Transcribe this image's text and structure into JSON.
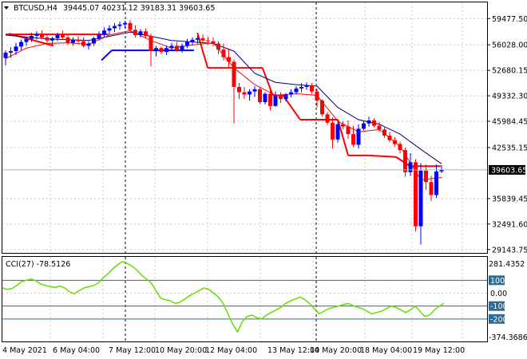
{
  "header": {
    "symbol": "BTCUSD,H4",
    "ohlc": "39445.07 40231.12 39183.31 39603.65"
  },
  "current_price_label": "39603.65",
  "cci_panel": {
    "label": "CCI(27) -78.5126",
    "top_scale": "281.4352",
    "bottom_scale": "-374.3686",
    "levels": [
      "100",
      "0.00",
      "-100",
      "-200"
    ]
  },
  "colors": {
    "bull": "#0000ff",
    "bear": "#ff0000",
    "ma_fast": "#ff0000",
    "ma_slow": "#000080",
    "cci": "#66dd00",
    "grid": "#c8c8c8",
    "price_tag": "#000000",
    "level_tag": "#2d6a96"
  },
  "chart_data": [
    {
      "type": "candlestick",
      "title": "BTCUSD,H4",
      "y_ticks": [
        "59477.50",
        "56028.00",
        "52680.15",
        "49332.30",
        "45984.45",
        "42535.15",
        "39603.65",
        "35839.45",
        "32491.60",
        "29143.75"
      ],
      "y_tick_values": [
        59477.5,
        56028.0,
        52680.15,
        49332.3,
        45984.45,
        42535.15,
        39603.65,
        35839.45,
        32491.6,
        29143.75
      ],
      "x_ticks": [
        "4 May 2021",
        "6 May 04:00",
        "7 May 12:00",
        "10 May 20:00",
        "12 May 04:00",
        "13 May 12:00",
        "14 May 20:00",
        "18 May 04:00",
        "19 May 12:00"
      ],
      "ylim": [
        28700,
        61600
      ],
      "grid": true,
      "candles": [
        {
          "o": 54300,
          "h": 55300,
          "l": 53300,
          "c": 55000
        },
        {
          "o": 55000,
          "h": 55700,
          "l": 54300,
          "c": 55200
        },
        {
          "o": 55200,
          "h": 56300,
          "l": 54700,
          "c": 55800
        },
        {
          "o": 55800,
          "h": 56700,
          "l": 55300,
          "c": 56400
        },
        {
          "o": 56400,
          "h": 57100,
          "l": 55900,
          "c": 56800
        },
        {
          "o": 56800,
          "h": 57600,
          "l": 56400,
          "c": 57200
        },
        {
          "o": 57200,
          "h": 57800,
          "l": 56700,
          "c": 57500
        },
        {
          "o": 57500,
          "h": 57900,
          "l": 56800,
          "c": 57000
        },
        {
          "o": 57000,
          "h": 57400,
          "l": 56200,
          "c": 56600
        },
        {
          "o": 56600,
          "h": 57100,
          "l": 56000,
          "c": 56900
        },
        {
          "o": 56900,
          "h": 57600,
          "l": 56500,
          "c": 57300
        },
        {
          "o": 57300,
          "h": 57900,
          "l": 56700,
          "c": 57000
        },
        {
          "o": 57000,
          "h": 57300,
          "l": 56000,
          "c": 56300
        },
        {
          "o": 56300,
          "h": 57000,
          "l": 55900,
          "c": 56700
        },
        {
          "o": 56700,
          "h": 57200,
          "l": 56300,
          "c": 56500
        },
        {
          "o": 56500,
          "h": 57000,
          "l": 55700,
          "c": 55900
        },
        {
          "o": 55900,
          "h": 56500,
          "l": 55400,
          "c": 56200
        },
        {
          "o": 56200,
          "h": 57100,
          "l": 55900,
          "c": 56900
        },
        {
          "o": 56900,
          "h": 57800,
          "l": 56600,
          "c": 57400
        },
        {
          "o": 57400,
          "h": 58300,
          "l": 57000,
          "c": 57900
        },
        {
          "o": 57900,
          "h": 58600,
          "l": 57400,
          "c": 58200
        },
        {
          "o": 58200,
          "h": 58900,
          "l": 57700,
          "c": 58500
        },
        {
          "o": 58500,
          "h": 59100,
          "l": 58000,
          "c": 58700
        },
        {
          "o": 58700,
          "h": 59200,
          "l": 58200,
          "c": 58900
        },
        {
          "o": 58900,
          "h": 59300,
          "l": 57600,
          "c": 58000
        },
        {
          "o": 58000,
          "h": 58600,
          "l": 57000,
          "c": 57300
        },
        {
          "o": 57300,
          "h": 58100,
          "l": 57000,
          "c": 57800
        },
        {
          "o": 57800,
          "h": 58200,
          "l": 56900,
          "c": 57200
        },
        {
          "o": 57200,
          "h": 57500,
          "l": 53200,
          "c": 55200
        },
        {
          "o": 55200,
          "h": 55900,
          "l": 54500,
          "c": 55600
        },
        {
          "o": 55600,
          "h": 55800,
          "l": 54800,
          "c": 55100
        },
        {
          "o": 55100,
          "h": 55900,
          "l": 54700,
          "c": 55600
        },
        {
          "o": 55600,
          "h": 56300,
          "l": 55200,
          "c": 55900
        },
        {
          "o": 55900,
          "h": 56400,
          "l": 55100,
          "c": 55300
        },
        {
          "o": 55300,
          "h": 56200,
          "l": 55000,
          "c": 55900
        },
        {
          "o": 55900,
          "h": 56800,
          "l": 55600,
          "c": 56400
        },
        {
          "o": 56400,
          "h": 57000,
          "l": 56000,
          "c": 56700
        },
        {
          "o": 56700,
          "h": 57200,
          "l": 56200,
          "c": 56900
        },
        {
          "o": 56900,
          "h": 57400,
          "l": 56400,
          "c": 56600
        },
        {
          "o": 56600,
          "h": 57100,
          "l": 56000,
          "c": 56500
        },
        {
          "o": 56500,
          "h": 57000,
          "l": 55800,
          "c": 56200
        },
        {
          "o": 56200,
          "h": 56500,
          "l": 54800,
          "c": 55400
        },
        {
          "o": 55400,
          "h": 56200,
          "l": 54000,
          "c": 54400
        },
        {
          "o": 54400,
          "h": 55400,
          "l": 53000,
          "c": 53800
        },
        {
          "o": 53800,
          "h": 54100,
          "l": 45700,
          "c": 50500
        },
        {
          "o": 50500,
          "h": 51000,
          "l": 48900,
          "c": 49800
        },
        {
          "o": 49800,
          "h": 50500,
          "l": 48900,
          "c": 49500
        },
        {
          "o": 49500,
          "h": 50200,
          "l": 48700,
          "c": 49900
        },
        {
          "o": 49900,
          "h": 50600,
          "l": 49200,
          "c": 50200
        },
        {
          "o": 50200,
          "h": 50400,
          "l": 48200,
          "c": 48500
        },
        {
          "o": 48500,
          "h": 49800,
          "l": 48200,
          "c": 49600
        },
        {
          "o": 49600,
          "h": 50100,
          "l": 47400,
          "c": 48000
        },
        {
          "o": 48000,
          "h": 49900,
          "l": 47900,
          "c": 49300
        },
        {
          "o": 49300,
          "h": 49800,
          "l": 48400,
          "c": 48900
        },
        {
          "o": 48900,
          "h": 49700,
          "l": 48600,
          "c": 49500
        },
        {
          "o": 49500,
          "h": 50200,
          "l": 49100,
          "c": 49800
        },
        {
          "o": 49800,
          "h": 50600,
          "l": 49500,
          "c": 50300
        },
        {
          "o": 50300,
          "h": 51000,
          "l": 49800,
          "c": 50500
        },
        {
          "o": 50500,
          "h": 51100,
          "l": 50100,
          "c": 50700
        },
        {
          "o": 50700,
          "h": 51000,
          "l": 49600,
          "c": 49900
        },
        {
          "o": 49900,
          "h": 50200,
          "l": 47800,
          "c": 48700
        },
        {
          "o": 48700,
          "h": 48900,
          "l": 46600,
          "c": 46900
        },
        {
          "o": 46900,
          "h": 47200,
          "l": 45500,
          "c": 45800
        },
        {
          "o": 45800,
          "h": 46500,
          "l": 42400,
          "c": 43600
        },
        {
          "o": 43600,
          "h": 45900,
          "l": 43200,
          "c": 45600
        },
        {
          "o": 45600,
          "h": 46000,
          "l": 44900,
          "c": 45300
        },
        {
          "o": 45300,
          "h": 46100,
          "l": 43700,
          "c": 44300
        },
        {
          "o": 44300,
          "h": 45400,
          "l": 42600,
          "c": 42900
        },
        {
          "o": 42900,
          "h": 45600,
          "l": 42400,
          "c": 45000
        },
        {
          "o": 45000,
          "h": 46000,
          "l": 44800,
          "c": 45700
        },
        {
          "o": 45700,
          "h": 46600,
          "l": 45300,
          "c": 46100
        },
        {
          "o": 46100,
          "h": 46400,
          "l": 45200,
          "c": 45400
        },
        {
          "o": 45400,
          "h": 45900,
          "l": 44600,
          "c": 44900
        },
        {
          "o": 44900,
          "h": 45300,
          "l": 43800,
          "c": 44100
        },
        {
          "o": 44100,
          "h": 44600,
          "l": 43200,
          "c": 43500
        },
        {
          "o": 43500,
          "h": 43900,
          "l": 42700,
          "c": 43000
        },
        {
          "o": 43000,
          "h": 43300,
          "l": 41800,
          "c": 42200
        },
        {
          "o": 42200,
          "h": 42500,
          "l": 38700,
          "c": 39300
        },
        {
          "o": 39300,
          "h": 41800,
          "l": 38800,
          "c": 40600
        },
        {
          "o": 40600,
          "h": 41000,
          "l": 31500,
          "c": 32200
        },
        {
          "o": 32200,
          "h": 40500,
          "l": 29800,
          "c": 39500
        },
        {
          "o": 39500,
          "h": 40300,
          "l": 37000,
          "c": 38000
        },
        {
          "o": 38000,
          "h": 38800,
          "l": 35500,
          "c": 36300
        },
        {
          "o": 36300,
          "h": 40300,
          "l": 35900,
          "c": 39400
        },
        {
          "o": 39400,
          "h": 40230,
          "l": 39180,
          "c": 39604
        }
      ],
      "ma_fast": [
        {
          "i": 0,
          "v": 54200
        },
        {
          "i": 4,
          "v": 55600
        },
        {
          "i": 8,
          "v": 56200
        },
        {
          "i": 12,
          "v": 56300
        },
        {
          "i": 16,
          "v": 56100
        },
        {
          "i": 20,
          "v": 57300
        },
        {
          "i": 24,
          "v": 57900
        },
        {
          "i": 28,
          "v": 56600
        },
        {
          "i": 32,
          "v": 55600
        },
        {
          "i": 36,
          "v": 56000
        },
        {
          "i": 40,
          "v": 56300
        },
        {
          "i": 44,
          "v": 53000
        },
        {
          "i": 48,
          "v": 50800
        },
        {
          "i": 52,
          "v": 49400
        },
        {
          "i": 56,
          "v": 49600
        },
        {
          "i": 60,
          "v": 49400
        },
        {
          "i": 64,
          "v": 46000
        },
        {
          "i": 68,
          "v": 44600
        },
        {
          "i": 72,
          "v": 44900
        },
        {
          "i": 76,
          "v": 42700
        },
        {
          "i": 80,
          "v": 38300
        },
        {
          "i": 84,
          "v": 38600
        }
      ],
      "ma_slow": [
        {
          "i": 0,
          "v": 57300
        },
        {
          "i": 8,
          "v": 56800
        },
        {
          "i": 16,
          "v": 56600
        },
        {
          "i": 24,
          "v": 57700
        },
        {
          "i": 32,
          "v": 56600
        },
        {
          "i": 40,
          "v": 56200
        },
        {
          "i": 44,
          "v": 55200
        },
        {
          "i": 48,
          "v": 52300
        },
        {
          "i": 52,
          "v": 51100
        },
        {
          "i": 56,
          "v": 50800
        },
        {
          "i": 60,
          "v": 50600
        },
        {
          "i": 64,
          "v": 47800
        },
        {
          "i": 68,
          "v": 46200
        },
        {
          "i": 72,
          "v": 45600
        },
        {
          "i": 76,
          "v": 44300
        },
        {
          "i": 80,
          "v": 42300
        },
        {
          "i": 84,
          "v": 40400
        }
      ],
      "stops_red": [
        [
          {
            "i": 0,
            "v": 57400
          },
          {
            "i": 30,
            "v": 57400
          }
        ],
        [
          {
            "i": 1,
            "v": 57500
          },
          {
            "i": 14,
            "v": 55900
          }
        ],
        [
          {
            "i": 56,
            "v": 57600
          },
          {
            "i": 59,
            "v": 53000
          }
        ],
        [
          {
            "i": 59,
            "v": 53000
          },
          {
            "i": 75,
            "v": 53000
          }
        ],
        [
          {
            "i": 75,
            "v": 53000
          },
          {
            "i": 78,
            "v": 49400
          }
        ],
        [
          {
            "i": 78,
            "v": 49400
          },
          {
            "i": 81,
            "v": 49400
          }
        ],
        [
          {
            "i": 81,
            "v": 49400
          },
          {
            "i": 86,
            "v": 46200
          }
        ],
        [
          {
            "i": 86,
            "v": 46200
          },
          {
            "i": 97,
            "v": 46200
          }
        ],
        [
          {
            "i": 97,
            "v": 46200
          },
          {
            "i": 100,
            "v": 41500
          }
        ],
        [
          {
            "i": 100,
            "v": 41500
          },
          {
            "i": 106,
            "v": 41500
          }
        ],
        [
          {
            "i": 106,
            "v": 41500
          },
          {
            "i": 114,
            "v": 41300
          }
        ],
        [
          {
            "i": 114,
            "v": 41300
          },
          {
            "i": 118,
            "v": 40100
          }
        ],
        [
          {
            "i": 118,
            "v": 40100
          },
          {
            "i": 127,
            "v": 40100
          }
        ]
      ],
      "stops_blue": [
        [
          {
            "i": 28,
            "v": 54000
          },
          {
            "i": 31,
            "v": 55300
          }
        ],
        [
          {
            "i": 31,
            "v": 55300
          },
          {
            "i": 55,
            "v": 55300
          }
        ]
      ]
    },
    {
      "type": "line",
      "title": "CCI(27) -78.5126",
      "y_ticks": [
        "281.4352",
        "100",
        "0.00",
        "-100",
        "-200",
        "-374.3686"
      ],
      "ylim": [
        -374.3686,
        281.4352
      ],
      "levels": [
        100,
        0,
        -100,
        -200
      ],
      "series": [
        {
          "values": [
            40,
            30,
            35,
            60,
            90,
            100,
            110,
            95,
            70,
            60,
            50,
            45,
            55,
            40,
            10,
            -5,
            20,
            40,
            50,
            60,
            80,
            120,
            150,
            190,
            220,
            245,
            230,
            210,
            180,
            140,
            110,
            80,
            20,
            -40,
            -50,
            -60,
            -80,
            -70,
            -45,
            -20,
            0,
            20,
            40,
            30,
            0,
            -30,
            -80,
            -160,
            -240,
            -300,
            -220,
            -180,
            -170,
            -190,
            -200,
            -170,
            -150,
            -130,
            -110,
            -80,
            -60,
            -45,
            -30,
            -50,
            -80,
            -120,
            -160,
            -140,
            -120,
            -110,
            -100,
            -90,
            -80,
            -95,
            -110,
            -120,
            -140,
            -160,
            -150,
            -140,
            -120,
            -100,
            -110,
            -130,
            -150,
            -130,
            -100,
            -140,
            -180,
            -170,
            -130,
            -100,
            -80
          ]
        }
      ]
    }
  ]
}
